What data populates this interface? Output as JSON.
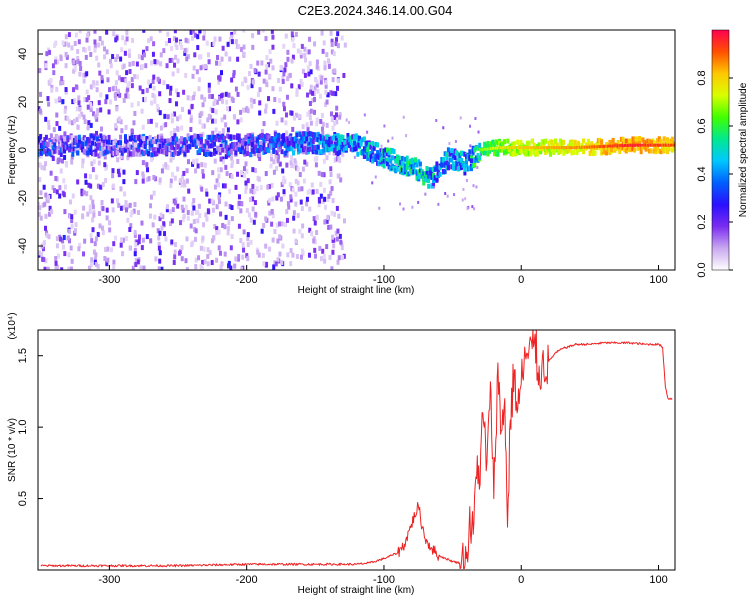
{
  "title": "C2E3.2024.346.14.00.G04",
  "chart_data": [
    {
      "type": "heatmap",
      "xlabel": "Height of straight line (km)",
      "ylabel": "Frequency (Hz)",
      "xlim": [
        -352,
        112
      ],
      "ylim": [
        -50,
        50
      ],
      "xticks": [
        "-300",
        "-200",
        "-100",
        "0",
        "100"
      ],
      "yticks": [
        "-40",
        "-20",
        "0",
        "20",
        "40"
      ],
      "colorbar": {
        "label": "Normalized spectral amplitude",
        "range": [
          0,
          1
        ],
        "ticks": [
          "0.0",
          "0.2",
          "0.4",
          "0.6",
          "0.8"
        ],
        "colormap": [
          "#ffffff",
          "#c9a8f0",
          "#7a2cf0",
          "#2a10ff",
          "#0060ff",
          "#00c8ff",
          "#00e890",
          "#40ff00",
          "#d8ff00",
          "#ffc800",
          "#ff5000",
          "#ff0050"
        ]
      },
      "ridge": [
        {
          "x": -350,
          "f": 2,
          "amp": 0.22
        },
        {
          "x": -300,
          "f": 2,
          "amp": 0.22
        },
        {
          "x": -250,
          "f": 2,
          "amp": 0.24
        },
        {
          "x": -200,
          "f": 2,
          "amp": 0.26
        },
        {
          "x": -150,
          "f": 3,
          "amp": 0.32
        },
        {
          "x": -120,
          "f": 2,
          "amp": 0.38
        },
        {
          "x": -100,
          "f": -3,
          "amp": 0.42
        },
        {
          "x": -80,
          "f": -7,
          "amp": 0.44
        },
        {
          "x": -65,
          "f": -12,
          "amp": 0.4
        },
        {
          "x": -52,
          "f": -3,
          "amp": 0.36
        },
        {
          "x": -40,
          "f": -6,
          "amp": 0.4
        },
        {
          "x": -30,
          "f": 0,
          "amp": 0.55
        },
        {
          "x": -15,
          "f": 1,
          "amp": 0.65
        },
        {
          "x": 0,
          "f": 1,
          "amp": 0.7
        },
        {
          "x": 40,
          "f": 1,
          "amp": 0.75
        },
        {
          "x": 80,
          "f": 2,
          "amp": 0.85
        },
        {
          "x": 110,
          "f": 2,
          "amp": 0.8
        }
      ]
    },
    {
      "type": "line",
      "xlabel": "Height of straight line (km)",
      "ylabel": "SNR (10 * v/v)",
      "scale_label": "(x10⁴)",
      "xlim": [
        -352,
        112
      ],
      "ylim": [
        0,
        1.68
      ],
      "xticks": [
        "-300",
        "-200",
        "-100",
        "0",
        "100"
      ],
      "yticks": [
        "0.5",
        "1.0",
        "1.5"
      ],
      "color": "#ee2222",
      "series": [
        {
          "x": [
            -350,
            -300,
            -250,
            -200,
            -150,
            -120,
            -110,
            -100,
            -90,
            -85,
            -80,
            -75,
            -72,
            -70,
            -65,
            -60,
            -55,
            -50,
            -45,
            -40,
            -38,
            -35,
            -32,
            -30,
            -28,
            -25,
            -22,
            -20,
            -17,
            -15,
            -12,
            -10,
            -8,
            -5,
            -3,
            0,
            3,
            5,
            8,
            10,
            12,
            15,
            20,
            25,
            30,
            40,
            50,
            60,
            70,
            80,
            90,
            100,
            103,
            105,
            107,
            110
          ],
          "y": [
            0.03,
            0.03,
            0.03,
            0.04,
            0.04,
            0.04,
            0.05,
            0.08,
            0.12,
            0.18,
            0.32,
            0.45,
            0.3,
            0.22,
            0.15,
            0.1,
            0.08,
            0.06,
            0.05,
            0.08,
            0.3,
            0.25,
            0.8,
            0.6,
            1.1,
            0.75,
            1.25,
            0.5,
            1.45,
            0.95,
            1.2,
            0.3,
            1.05,
            1.4,
            1.1,
            1.3,
            1.5,
            1.48,
            1.55,
            1.65,
            1.38,
            1.42,
            1.46,
            1.52,
            1.55,
            1.58,
            1.58,
            1.59,
            1.59,
            1.59,
            1.58,
            1.58,
            1.56,
            1.28,
            1.2,
            1.2
          ]
        }
      ]
    }
  ]
}
